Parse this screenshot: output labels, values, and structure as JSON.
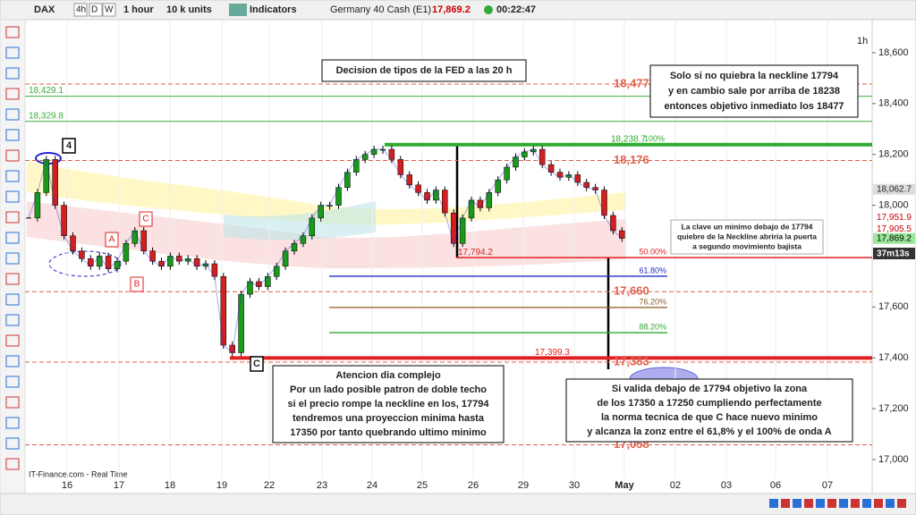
{
  "toolbar": {
    "symbol": "DAX",
    "buttons": [
      "4h",
      "D",
      "W"
    ],
    "timeframe": "1 hour",
    "units": "10 k units",
    "indicators": "Indicators",
    "instrument": "Germany 40 Cash (E1)",
    "price": "17,869.2",
    "clock": "00:22:47"
  },
  "chart": {
    "interval": "1h",
    "credit": "IT-Finance.com - Real Time",
    "ylim": [
      16926,
      18730
    ],
    "price_ticks": [
      {
        "value": 18600,
        "label": "18,600"
      },
      {
        "value": 18400,
        "label": "18,400"
      },
      {
        "value": 18200,
        "label": "18,200"
      },
      {
        "value": 18000,
        "label": "18,000"
      },
      {
        "value": 17600,
        "label": "17,600"
      },
      {
        "value": 17400,
        "label": "17,400"
      },
      {
        "value": 17200,
        "label": "17,200"
      },
      {
        "value": 17000,
        "label": "17,000"
      }
    ],
    "time_labels": [
      "16",
      "17",
      "18",
      "19",
      "22",
      "23",
      "24",
      "25",
      "26",
      "29",
      "30",
      "May",
      "02",
      "03",
      "06",
      "07"
    ],
    "closes": [
      17950,
      18050,
      18180,
      18000,
      17880,
      17820,
      17790,
      17760,
      17800,
      17750,
      17780,
      17850,
      17900,
      17820,
      17780,
      17760,
      17800,
      17780,
      17790,
      17760,
      17770,
      17720,
      17450,
      17420,
      17650,
      17700,
      17680,
      17720,
      17760,
      17820,
      17850,
      17880,
      17950,
      18000,
      18000,
      18070,
      18130,
      18180,
      18200,
      18220,
      18220,
      18180,
      18120,
      18080,
      18050,
      18020,
      18060,
      17970,
      17850,
      17950,
      18020,
      17990,
      18050,
      18100,
      18150,
      18190,
      18210,
      18220,
      18160,
      18130,
      18110,
      18120,
      18090,
      18070,
      18060,
      17960,
      17900,
      17870
    ],
    "levels": [
      {
        "value": 18477,
        "label": "18,477"
      },
      {
        "value": 18429.1,
        "label": "18,429.1"
      },
      {
        "value": 18329.8,
        "label": "18,329.8"
      },
      {
        "value": 18238.7,
        "label": "18,238.7"
      },
      {
        "value": 18176,
        "label": "18,176"
      },
      {
        "value": 17794.2,
        "label": "17,794.2"
      },
      {
        "value": 17660,
        "label": "17,660"
      },
      {
        "value": 17399.3,
        "label": "17,399.3"
      },
      {
        "value": 17383,
        "label": "17,383"
      },
      {
        "value": 17058,
        "label": "17,058"
      }
    ],
    "fib": [
      {
        "value": 18238.7,
        "label": "100%"
      },
      {
        "value": 17794.2,
        "label": "50.00%"
      },
      {
        "value": 17721,
        "label": "61.80%"
      },
      {
        "value": 17598,
        "label": "76.20%"
      },
      {
        "value": 17499,
        "label": "88.20%"
      }
    ],
    "price_tags": [
      {
        "value": 18062.7,
        "label": "18,062.7"
      },
      {
        "value": 17951.9,
        "label": "17,951.9"
      },
      {
        "value": 17905.5,
        "label": "17,905.5"
      },
      {
        "value": 17869.2,
        "label": "17,869.2"
      }
    ],
    "timer": "37m13s",
    "wave_labels": [
      "4",
      "C",
      "A",
      "B",
      "C"
    ],
    "notes": [
      [
        "Decision de tipos de la FED a las 20 h"
      ],
      [
        "Solo si no quiebra la neckline 17794",
        "y en cambio sale por arriba de 18238",
        "entonces objetivo inmediato los 18477"
      ],
      [
        "La clave un minimo debajo de 17794",
        "quiebre de la Neckline abriria la puerta",
        "a segundo movimiento bajista"
      ],
      [
        "Atencion dia complejo",
        "Por un lado posible patron de doble techo",
        "si el precio rompe la neckline en los, 17794",
        "tendremos una proyeccion minima hasta",
        "17350 por tanto quebrando ultimo minimo"
      ],
      [
        "Si valida debajo de 17794 objetivo la zona",
        "de los 17350 a 17250 cumpliendo perfectamente",
        "la norma tecnica de que C hace nuevo minimo",
        "y alcanza la zonz entre el 61,8% y el 100% de onda A"
      ]
    ]
  }
}
